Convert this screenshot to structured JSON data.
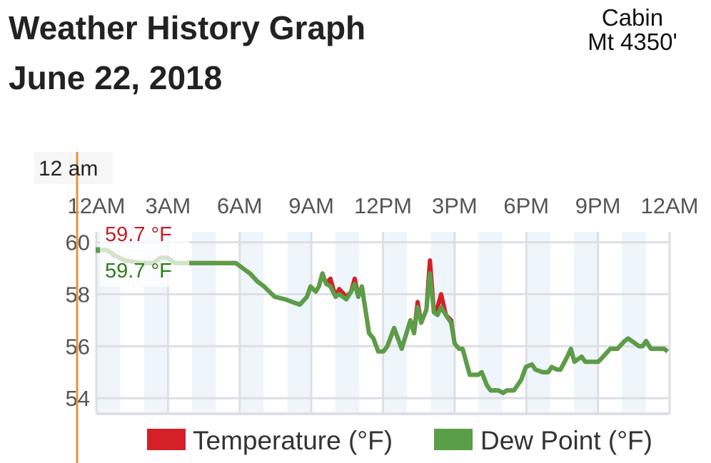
{
  "header": {
    "title_line1": "Weather History Graph",
    "title_line2": "June 22, 2018",
    "station_line1": "Cabin",
    "station_line2": "Mt 4350'"
  },
  "tooltip": {
    "time": "12 am",
    "temperature": "59.7 °F",
    "dew_point": "59.7 °F"
  },
  "colors": {
    "temperature": "#d42027",
    "dew_point": "#5a9e47",
    "cursor": "#e8913a",
    "stripe": "#eef5fb",
    "grid": "#dcdfe3"
  },
  "chart_data": {
    "type": "line",
    "title": "",
    "xlabel": "",
    "ylabel": "",
    "x_ticks": [
      "12AM",
      "3AM",
      "6AM",
      "9AM",
      "12PM",
      "3PM",
      "6PM",
      "9PM",
      "12AM"
    ],
    "xlim": [
      "00:00",
      "24:00"
    ],
    "y_ticks": [
      60,
      58,
      56,
      54
    ],
    "ylim": [
      53.4,
      60.4
    ],
    "grid": true,
    "legend_placement": "bottom",
    "times": [
      "00:00",
      "00:27",
      "00:45",
      "01:12",
      "01:56",
      "02:23",
      "02:41",
      "02:59",
      "03:17",
      "05:50",
      "06:08",
      "06:26",
      "06:44",
      "07:01",
      "07:28",
      "07:55",
      "08:13",
      "08:31",
      "08:49",
      "08:58",
      "09:11",
      "09:19",
      "09:28",
      "09:37",
      "09:48",
      "10:01",
      "10:10",
      "10:28",
      "10:40",
      "10:49",
      "10:58",
      "11:07",
      "11:25",
      "11:36",
      "11:48",
      "12:01",
      "12:11",
      "12:28",
      "12:47",
      "13:09",
      "13:18",
      "13:27",
      "13:36",
      "13:49",
      "13:58",
      "14:08",
      "14:17",
      "14:26",
      "14:38",
      "14:51",
      "15:00",
      "15:11",
      "15:20",
      "15:38",
      "15:59",
      "16:08",
      "16:21",
      "16:30",
      "16:50",
      "17:02",
      "17:11",
      "17:29",
      "17:47",
      "17:59",
      "18:14",
      "18:23",
      "18:41",
      "18:55",
      "19:04",
      "19:17",
      "19:26",
      "19:43",
      "19:52",
      "20:01",
      "20:19",
      "20:28",
      "21:01",
      "21:13",
      "21:31",
      "21:49",
      "22:07",
      "22:16",
      "22:34",
      "22:43",
      "22:52",
      "23:01",
      "23:13",
      "23:46",
      "23:55"
    ],
    "series": [
      {
        "name": "Temperature (°F)",
        "values": [
          59.7,
          59.7,
          59.5,
          59.3,
          59.2,
          59.2,
          59.4,
          59.4,
          59.2,
          59.2,
          59.0,
          58.8,
          58.5,
          58.3,
          57.9,
          57.8,
          57.7,
          57.6,
          57.9,
          58.3,
          58.1,
          58.3,
          58.8,
          58.4,
          58.6,
          57.9,
          58.2,
          57.9,
          58.1,
          58.6,
          57.9,
          58.3,
          56.5,
          56.3,
          55.8,
          55.8,
          56.0,
          56.7,
          55.9,
          57.0,
          56.5,
          57.7,
          56.9,
          57.4,
          59.3,
          57.3,
          57.5,
          58.0,
          57.2,
          57.0,
          56.1,
          55.9,
          55.9,
          54.9,
          54.9,
          55.0,
          54.5,
          54.3,
          54.3,
          54.2,
          54.3,
          54.3,
          54.7,
          55.2,
          55.3,
          55.1,
          55.0,
          55.0,
          55.2,
          55.1,
          55.1,
          55.6,
          55.9,
          55.4,
          55.6,
          55.4,
          55.4,
          55.6,
          55.9,
          55.9,
          56.2,
          56.3,
          56.1,
          56.0,
          56.0,
          56.2,
          55.9,
          55.9,
          55.8
        ]
      },
      {
        "name": "Dew Point (°F)",
        "values": [
          59.7,
          59.7,
          59.5,
          59.3,
          59.2,
          59.2,
          59.4,
          59.4,
          59.2,
          59.2,
          59.0,
          58.8,
          58.5,
          58.3,
          57.9,
          57.8,
          57.7,
          57.6,
          57.9,
          58.3,
          58.1,
          58.3,
          58.8,
          58.4,
          58.3,
          57.9,
          58.0,
          57.8,
          58.1,
          58.4,
          57.9,
          58.3,
          56.5,
          56.3,
          55.8,
          55.8,
          56.0,
          56.7,
          55.9,
          57.0,
          56.5,
          57.5,
          56.9,
          57.4,
          58.8,
          57.3,
          57.2,
          57.5,
          57.2,
          56.9,
          56.1,
          55.9,
          55.9,
          54.9,
          54.9,
          55.0,
          54.5,
          54.3,
          54.3,
          54.2,
          54.3,
          54.3,
          54.7,
          55.2,
          55.3,
          55.1,
          55.0,
          55.0,
          55.2,
          55.1,
          55.1,
          55.6,
          55.9,
          55.4,
          55.6,
          55.4,
          55.4,
          55.6,
          55.9,
          55.9,
          56.2,
          56.3,
          56.1,
          56.0,
          56.0,
          56.2,
          55.9,
          55.9,
          55.8
        ]
      }
    ]
  }
}
